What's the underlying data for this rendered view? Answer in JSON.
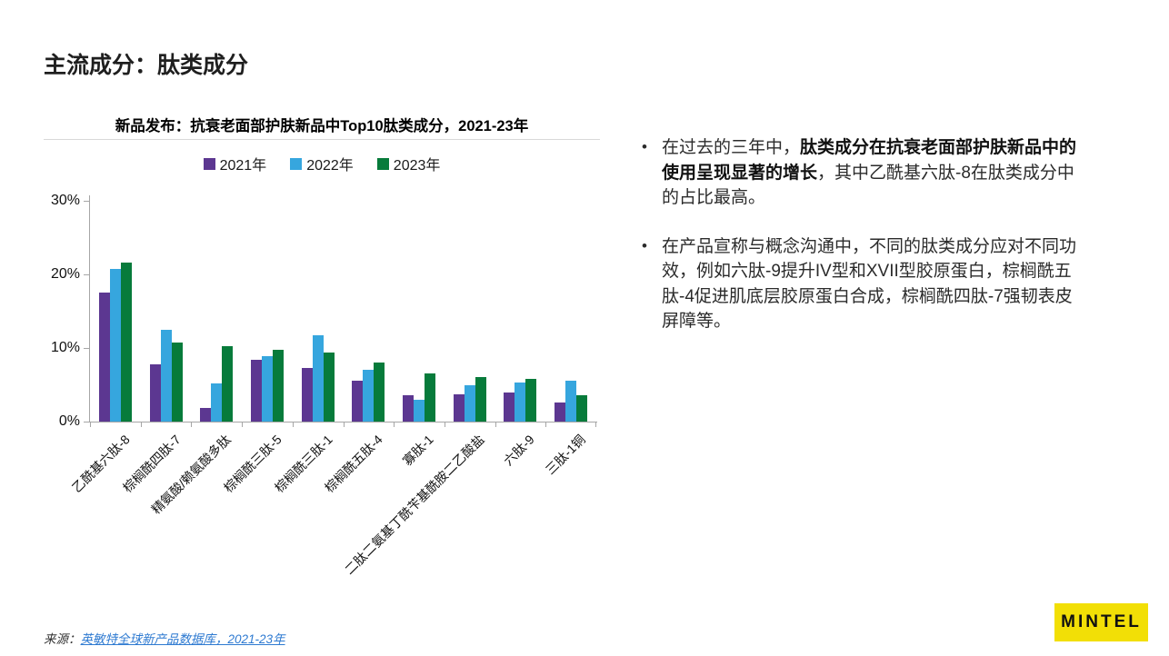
{
  "page": {
    "title": "主流成分：肽类成分"
  },
  "chart": {
    "title": "新品发布：抗衰老面部护肤新品中Top10肽类成分，2021-23年"
  },
  "chart_data": {
    "type": "bar",
    "title": "新品发布：抗衰老面部护肤新品中Top10肽类成分，2021-23年",
    "categories": [
      "乙酰基六肽-8",
      "棕榈酰四肽-7",
      "精氨酸/赖氨酸多肽",
      "棕榈酰三肽-5",
      "棕榈酰三肽-1",
      "棕榈酰五肽-4",
      "寡肽-1",
      "二肽二氨基丁酰苄基酰胺二乙酸盐",
      "六肽-9",
      "三肽-1铜"
    ],
    "series": [
      {
        "name": "2021年",
        "color": "#5c3791",
        "values": [
          17.5,
          7.8,
          1.9,
          8.4,
          7.3,
          5.5,
          3.6,
          3.7,
          4.0,
          2.6
        ]
      },
      {
        "name": "2022年",
        "color": "#36a6de",
        "values": [
          20.7,
          12.5,
          5.2,
          8.9,
          11.7,
          7.0,
          3.0,
          5.0,
          5.3,
          5.5
        ]
      },
      {
        "name": "2023年",
        "color": "#077b3b",
        "values": [
          21.6,
          10.8,
          10.2,
          9.7,
          9.4,
          8.0,
          6.5,
          6.0,
          5.8,
          3.6
        ]
      }
    ],
    "xlabel": "",
    "ylabel": "",
    "ylim": [
      0,
      30
    ],
    "yticks": [
      {
        "label": "0%",
        "value": 0
      },
      {
        "label": "10%",
        "value": 10
      },
      {
        "label": "20%",
        "value": 20
      },
      {
        "label": "30%",
        "value": 30
      }
    ],
    "grid": false,
    "legend_position": "top",
    "axis_color": "#a6a6a6"
  },
  "insights": {
    "bullet_glyph": "•",
    "bullet1_pre": "在过去的三年中，",
    "bullet1_bold": "肽类成分在抗衰老面部护肤新品中的使用呈现显著的增长",
    "bullet1_post": "，其中乙酰基六肽-8在肽类成分中的占比最高。",
    "bullet2": "在产品宣称与概念沟通中，不同的肽类成分应对不同功效，例如六肽-9提升IV型和XVII型胶原蛋白，棕榈酰五肽-4促进肌底层胶原蛋白合成，棕榈酰四肽-7强韧表皮屏障等。"
  },
  "footer": {
    "source_label": "来源：",
    "source_link": "英敏特全球新产品数据库，2021-23年",
    "logo_text": "MINTEL",
    "logo_bg": "#f2df06"
  }
}
